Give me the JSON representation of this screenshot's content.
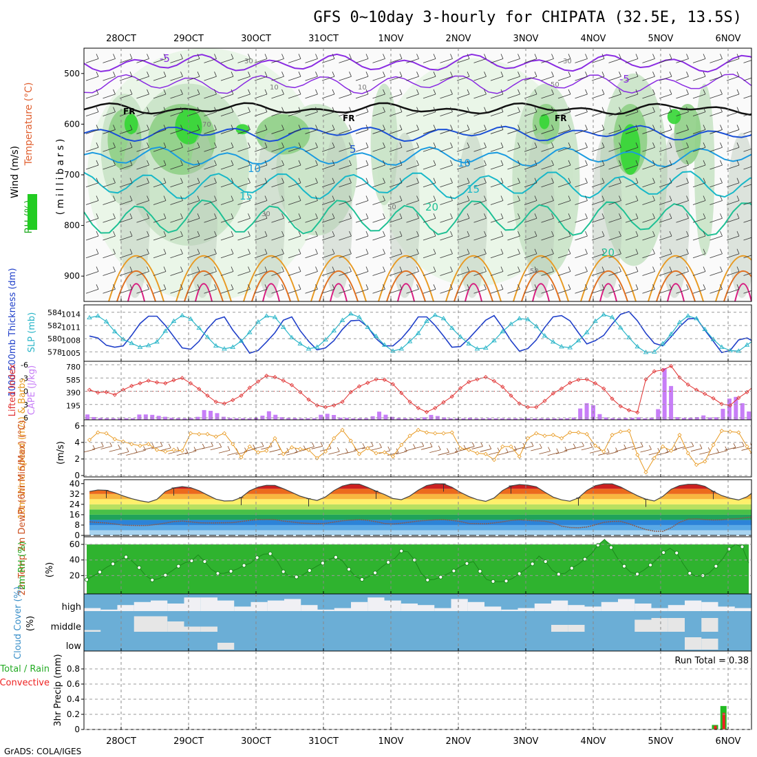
{
  "title": "GFS 0~10day 3-hourly for CHIPATA (32.5E, 13.5S)",
  "credit": "GrADS: COLA/IGES",
  "date_labels": [
    "28OCT",
    "29OCT",
    "30OCT",
    "31OCT",
    "1NOV",
    "2NOV",
    "3NOV",
    "4NOV",
    "5NOV",
    "6NOV"
  ],
  "colors": {
    "rh_green": "#22cc22",
    "temp_purple": "#8a2be2",
    "temp_blue": "#1a4fd6",
    "temp_lightblue": "#1a9be0",
    "temp_cyan": "#17b8c8",
    "temp_teal": "#1ec094",
    "temp_orange": "#e89a22",
    "temp_darkorange": "#e07020",
    "temp_magenta": "#d81b80",
    "thickness_blue": "#1f3fc9",
    "slp_cyan": "#29b5c8",
    "lifted_red": "#e03030",
    "cape_purple": "#c77ef7",
    "wind_orange": "#e89a22",
    "cloud_blue": "#6baed6",
    "cloud_white": "#f0f0f4",
    "precip_green": "#22bb22",
    "precip_red": "#ee2222"
  },
  "chart_data": [
    {
      "type": "heatmap",
      "panel": "upper-air",
      "ylabel_parts": [
        "Wind (m/s)",
        "Temperature (°C)",
        "RH (%)"
      ],
      "axis_name": "(millibars)",
      "y_ticks": [
        "500",
        "600",
        "700",
        "800",
        "900"
      ],
      "ylim": [
        450,
        950
      ],
      "temperature_labels": [
        "-5",
        "-5",
        "-5",
        "-5",
        "5",
        "10",
        "10",
        "15",
        "15",
        "20",
        "20"
      ],
      "freezing_label": "FR",
      "rh_labels": [
        "30",
        "10",
        "70",
        "10",
        "30",
        "50",
        "50",
        "30",
        "50"
      ]
    },
    {
      "type": "line",
      "panel": "thickness-slp",
      "ylabel_left": "1000-500mb Thickness (dm)",
      "ylabel_right": "SLP (mb)",
      "y_ticks_left": [
        "584",
        "582",
        "580",
        "578"
      ],
      "y_ticks_right": [
        "1014",
        "1011",
        "1008",
        "1005"
      ],
      "series": [
        {
          "name": "1000-500mb Thickness",
          "values": [
            580.4,
            580.1,
            579.0,
            578.7,
            578.9,
            580.5,
            582.3,
            583.4,
            583.4,
            582.0,
            580.3,
            578.6,
            578.4,
            579.6,
            581.5,
            582.9,
            583.3,
            581.3,
            579.7,
            577.8,
            578.2,
            579.5,
            580.9,
            582.8,
            583.3,
            581.2,
            579.6,
            578.3,
            578.6,
            579.7,
            581.4,
            582.7,
            582.8,
            581.8,
            580.0,
            578.9,
            578.9,
            580.0,
            581.5,
            583.3,
            583.3,
            582.0,
            580.4,
            578.7,
            578.8,
            580.0,
            581.4,
            582.8,
            583.5,
            581.7,
            579.7,
            578.1,
            578.5,
            579.8,
            581.7,
            583.3,
            583.5,
            582.7,
            580.9,
            579.2,
            579.7,
            580.5,
            582.2,
            583.7,
            584.1,
            582.7,
            580.8,
            579.3,
            578.9,
            580.3,
            581.8,
            583.0,
            583.1,
            581.3,
            579.6,
            577.9,
            578.2,
            579.8,
            580.1,
            579.4,
            580.2,
            580.6
          ]
        },
        {
          "name": "SLP",
          "values": [
            1013.2,
            1013.6,
            1012.3,
            1010.0,
            1008.2,
            1007.3,
            1006.4,
            1006.8,
            1007.6,
            1010.1,
            1012.4,
            1013.7,
            1012.9,
            1010.8,
            1008.7,
            1006.7,
            1006.0,
            1006.4,
            1007.8,
            1009.8,
            1012.2,
            1013.6,
            1013.3,
            1011.0,
            1008.6,
            1007.2,
            1006.0,
            1006.4,
            1008.1,
            1010.2,
            1012.6,
            1014.1,
            1013.3,
            1011.0,
            1008.9,
            1006.9,
            1005.5,
            1006.0,
            1007.7,
            1009.6,
            1012.4,
            1013.8,
            1013.0,
            1010.8,
            1008.8,
            1007.2,
            1006.0,
            1006.2,
            1007.9,
            1010.0,
            1011.7,
            1013.0,
            1012.8,
            1011.2,
            1009.0,
            1007.6,
            1006.5,
            1006.3,
            1007.9,
            1009.8,
            1012.4,
            1013.9,
            1013.3,
            1010.9,
            1008.6,
            1006.5,
            1005.2,
            1005.3,
            1007.2,
            1009.4,
            1012.1,
            1013.6,
            1013.0,
            1010.5,
            1008.2,
            1006.4,
            1005.6,
            1005.5,
            1006.9,
            1008.3,
            1006.5,
            1007.0
          ]
        }
      ]
    },
    {
      "type": "bar",
      "panel": "lifted-index-cape",
      "ylabel_left": "Lifted Index",
      "ylabel_right": "CAPE (J/kg)",
      "y_ticks_left": [
        "-6",
        "-3",
        "0",
        "3",
        "6"
      ],
      "y_ticks_right": [
        "780",
        "585",
        "390",
        "195"
      ],
      "series": [
        {
          "name": "Lifted Index",
          "values": [
            -0.3,
            0.3,
            0.2,
            0.8,
            -0.3,
            -1.2,
            -1.8,
            -2.4,
            -2.0,
            -1.8,
            -2.5,
            -3.0,
            -1.8,
            -0.5,
            1.0,
            2.4,
            2.8,
            2.0,
            1.0,
            -0.8,
            -2.2,
            -3.5,
            -3.2,
            -2.4,
            -1.4,
            0.2,
            1.9,
            3.2,
            3.6,
            3.2,
            2.4,
            0.2,
            -1.1,
            -1.9,
            -2.7,
            -2.6,
            -1.6,
            0.4,
            2.4,
            3.8,
            4.7,
            3.8,
            2.5,
            1.2,
            -0.7,
            -2.1,
            -2.7,
            -3.2,
            -2.3,
            -1.0,
            1.0,
            2.8,
            3.6,
            3.6,
            2.2,
            0.5,
            -0.6,
            -1.9,
            -2.6,
            -2.7,
            -1.8,
            -0.6,
            1.7,
            3.4,
            4.3,
            4.8,
            -2.7,
            -4.5,
            -4.8,
            -5.7,
            -3.1,
            -1.5,
            -0.3,
            0.6,
            1.6,
            2.9,
            3.2,
            1.5,
            0.2,
            -1.5,
            0.4,
            -0.4
          ]
        },
        {
          "name": "CAPE",
          "values": [
            60,
            21,
            6,
            3,
            2,
            0,
            2,
            2,
            59,
            60,
            54,
            39,
            25,
            9,
            4,
            0,
            5,
            24,
            126,
            115,
            80,
            25,
            5,
            2,
            2,
            0,
            10,
            42,
            108,
            55,
            19,
            6,
            4,
            0,
            2,
            2,
            55,
            70,
            52,
            11,
            9,
            0,
            2,
            2,
            33,
            102,
            56,
            24,
            5,
            2,
            0,
            3,
            17,
            53,
            36,
            16,
            1,
            0,
            0,
            10,
            0,
            0,
            4,
            0,
            0,
            0,
            0,
            0,
            0,
            0,
            0,
            0,
            0,
            0,
            2,
            13,
            150,
            230,
            200,
            65,
            15,
            3,
            0,
            5,
            10,
            17,
            0,
            12,
            140,
            760,
            490,
            20,
            7,
            10,
            20,
            45,
            15,
            18,
            145,
            300,
            325,
            230,
            105,
            30,
            15,
            6,
            10,
            75
          ]
        }
      ]
    },
    {
      "type": "line",
      "panel": "wind-10m",
      "ylabel": "10m Wind Speed (m/s) & Barbs",
      "y_ticks": [
        "6",
        "4",
        "2",
        "0"
      ],
      "series": [
        {
          "name": "10m Wind Speed",
          "values": [
            4.3,
            5.2,
            5.1,
            4.4,
            4.1,
            3.8,
            3.6,
            3.8,
            3.1,
            2.9,
            3.1,
            3.0,
            5.1,
            5.0,
            5.0,
            4.7,
            5.1,
            3.8,
            2.2,
            3.5,
            2.8,
            3.0,
            4.5,
            2.6,
            3.4,
            3.2,
            3.1,
            2.1,
            2.9,
            4.5,
            5.5,
            4.2,
            2.6,
            3.3,
            2.7,
            2.8,
            2.3,
            3.7,
            4.8,
            5.5,
            5.2,
            5.1,
            5.1,
            5.2,
            3.3,
            3.1,
            2.7,
            2.6,
            1.9,
            3.5,
            3.5,
            2.3,
            4.5,
            5.1,
            4.8,
            4.9,
            4.5,
            5.2,
            5.2,
            5.0,
            3.6,
            2.9,
            4.9,
            5.3,
            5.4,
            2.5,
            0.4,
            2.1,
            3.5,
            3.0,
            4.9,
            2.7,
            1.3,
            1.7,
            3.7,
            5.4,
            5.3,
            5.2,
            3.5,
            2.0,
            3.3,
            3.1,
            4.6,
            3.0,
            3.5,
            4.2,
            5.2,
            4.8,
            3.5,
            2.1,
            1.5,
            1.9,
            2.1
          ]
        }
      ]
    },
    {
      "type": "area",
      "panel": "2m-temp",
      "ylabel": "2m Temp 2m DewPt (6hr Min/Max) (°C)",
      "y_ticks": [
        "40",
        "32",
        "24",
        "16",
        "8",
        "0"
      ],
      "series": [
        {
          "name": "2m Temp",
          "values": [
            33.9,
            35.1,
            34.8,
            33.0,
            30.5,
            28.4,
            26.8,
            25.7,
            27.8,
            33.9,
            36.7,
            37.7,
            36.9,
            34.5,
            31.2,
            28.0,
            26.6,
            26.8,
            29.3,
            34.5,
            37.3,
            38.7,
            38.6,
            36.1,
            33.3,
            30.3,
            28.4,
            27.0,
            29.7,
            34.6,
            38.1,
            39.7,
            39.6,
            37.1,
            34.2,
            31.6,
            28.5,
            27.6,
            30.4,
            35.0,
            38.5,
            39.9,
            39.8,
            37.2,
            33.3,
            30.1,
            27.7,
            26.3,
            28.9,
            34.7,
            38.2,
            39.3,
            38.8,
            37.6,
            33.5,
            29.6,
            27.5,
            26.4,
            29.0,
            34.7,
            38.4,
            39.8,
            39.8,
            37.5,
            34.0,
            30.7,
            28.0,
            26.6,
            30.1,
            35.7,
            38.5,
            39.5,
            39.5,
            37.9,
            34.0,
            30.8,
            28.7,
            27.4,
            29.9,
            34.8,
            37.6,
            38.4,
            38.4,
            37.4,
            31.6,
            30.2,
            28.9,
            27.5,
            24.4,
            26.2,
            28.8
          ]
        },
        {
          "name": "2m DewPt",
          "values": [
            10.5,
            10.0,
            9.6,
            8.8,
            8.0,
            7.7,
            7.6,
            7.7,
            8.5,
            9.5,
            10.7,
            11.1,
            10.5,
            9.8,
            9.6,
            9.7,
            9.8,
            9.9,
            10.8,
            11.6,
            12.2,
            12.3,
            12.2,
            11.1,
            10.4,
            9.6,
            9.3,
            9.1,
            9.3,
            10.3,
            11.3,
            11.8,
            12.1,
            11.7,
            10.6,
            9.2,
            8.9,
            9.4,
            10.2,
            11.1,
            11.6,
            12.0,
            12.1,
            11.6,
            10.8,
            9.2,
            9.1,
            9.0,
            9.6,
            10.5,
            11.6,
            12.0,
            11.6,
            11.3,
            11.0,
            9.6,
            7.2,
            6.1,
            5.9,
            6.5,
            8.2,
            10.1,
            10.8,
            10.9,
            9.0,
            6.7,
            4.5,
            3.3,
            3.1,
            5.9,
            10.1,
            12.5,
            12.8,
            12.2,
            11.9,
            12.0,
            12.6,
            13.0,
            13.8,
            14.6,
            16.1,
            17.6,
            17.5,
            15.4,
            12.5,
            11.9,
            11.7,
            11.9,
            12.2,
            14.4,
            16.1
          ]
        }
      ]
    },
    {
      "type": "area",
      "panel": "2m-rh",
      "ylabel": "2m RH (%)",
      "y_ticks": [
        "60",
        "40",
        "20"
      ],
      "series": [
        {
          "name": "2m RH",
          "values": [
            14.7,
            19.5,
            24.5,
            30.5,
            35.0,
            40.0,
            43.8,
            38.0,
            30.2,
            20.0,
            14.3,
            16.0,
            20.5,
            26.0,
            32.0,
            36.5,
            39.0,
            46.5,
            38.0,
            28.0,
            22.8,
            23.0,
            25.5,
            28.5,
            33.0,
            36.0,
            43.0,
            47.5,
            48.0,
            39.5,
            25.0,
            18.5,
            18.2,
            21.0,
            26.5,
            31.5,
            36.0,
            41.0,
            43.5,
            39.0,
            28.0,
            19.0,
            15.0,
            18.5,
            23.5,
            31.0,
            37.0,
            42.0,
            51.5,
            50.5,
            40.0,
            23.5,
            14.3,
            15.0,
            18.0,
            22.0,
            26.0,
            31.5,
            35.5,
            38.0,
            25.5,
            15.0,
            12.5,
            12.0,
            13.0,
            16.5,
            22.5,
            28.5,
            35.0,
            45.0,
            38.0,
            27.0,
            21.8,
            23.0,
            29.5,
            34.5,
            41.0,
            48.0,
            59.0,
            66.5,
            56.0,
            42.0,
            32.0,
            24.0,
            22.0,
            27.0,
            33.5,
            41.0,
            49.5,
            55.0,
            49.0,
            35.0,
            23.0,
            19.0,
            20.0,
            23.5,
            32.0,
            41.0,
            54.0,
            60.0,
            57.0,
            36.0
          ]
        }
      ]
    },
    {
      "type": "bar",
      "panel": "cloud-cover",
      "ylabel": "Cloud Cover (%)",
      "levels": [
        "high",
        "middle",
        "low"
      ]
    },
    {
      "type": "bar",
      "panel": "precip",
      "ylabel": "3hr Precip (mm)",
      "legend": [
        "Total / Rain",
        "Convective"
      ],
      "y_ticks": [
        "0.8",
        "0.6",
        "0.4",
        "0.2",
        "0"
      ],
      "ylim": [
        0,
        1.0
      ],
      "run_total_label": "Run Total = 0.38",
      "series": [
        {
          "name": "Total / Rain",
          "values": [
            {
              "x": 74,
              "y": 0.06
            },
            {
              "x": 75,
              "y": 0.31
            }
          ]
        },
        {
          "name": "Convective",
          "values": [
            {
              "x": 74,
              "y": 0.05
            },
            {
              "x": 75,
              "y": 0.22
            }
          ]
        }
      ]
    }
  ]
}
